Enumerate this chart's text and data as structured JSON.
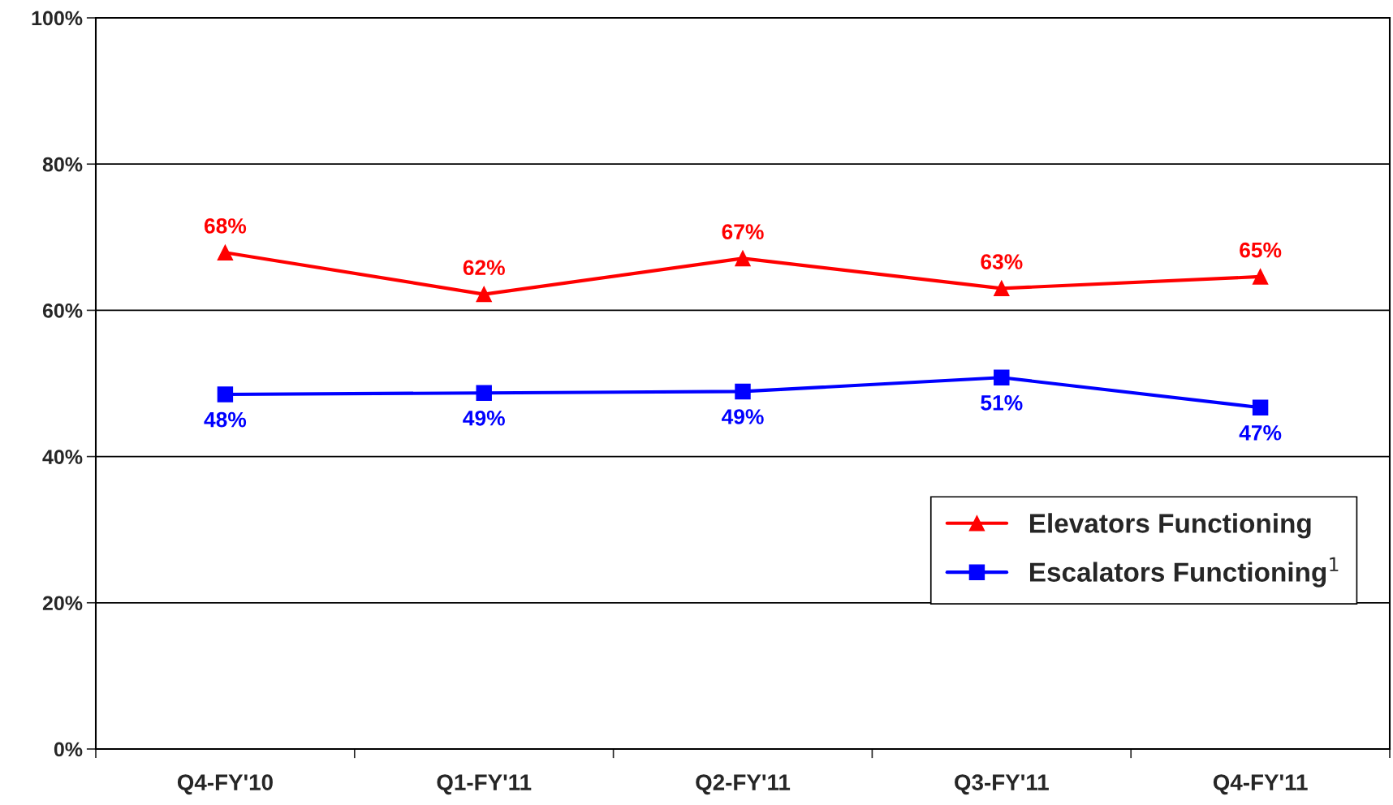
{
  "chart_data": {
    "type": "line",
    "categories": [
      "Q4-FY'10",
      "Q1-FY'11",
      "Q2-FY'11",
      "Q3-FY'11",
      "Q4-FY'11"
    ],
    "series": [
      {
        "name": "Elevators Functioning",
        "color": "#ff0000",
        "marker": "triangle",
        "values": [
          67.9,
          62.2,
          67.1,
          63.0,
          64.6
        ],
        "value_labels": [
          "68%",
          "62%",
          "67%",
          "63%",
          "65%"
        ]
      },
      {
        "name": "Escalators Functioning$^{1}$",
        "color": "#0000ff",
        "marker": "square",
        "values": [
          48.5,
          48.7,
          48.9,
          50.8,
          46.7
        ],
        "value_labels": [
          "48%",
          "49%",
          "49%",
          "51%",
          "47%"
        ]
      }
    ],
    "ylim": [
      0,
      100
    ],
    "yticks": [
      {
        "value": 0,
        "label": "0%"
      },
      {
        "value": 20,
        "label": "20%"
      },
      {
        "value": 40,
        "label": "40%"
      },
      {
        "value": 60,
        "label": "60%"
      },
      {
        "value": 80,
        "label": "80%"
      },
      {
        "value": 100,
        "label": "100%"
      }
    ],
    "grid": "y",
    "legend": "bottom right",
    "line_style": "solid"
  }
}
